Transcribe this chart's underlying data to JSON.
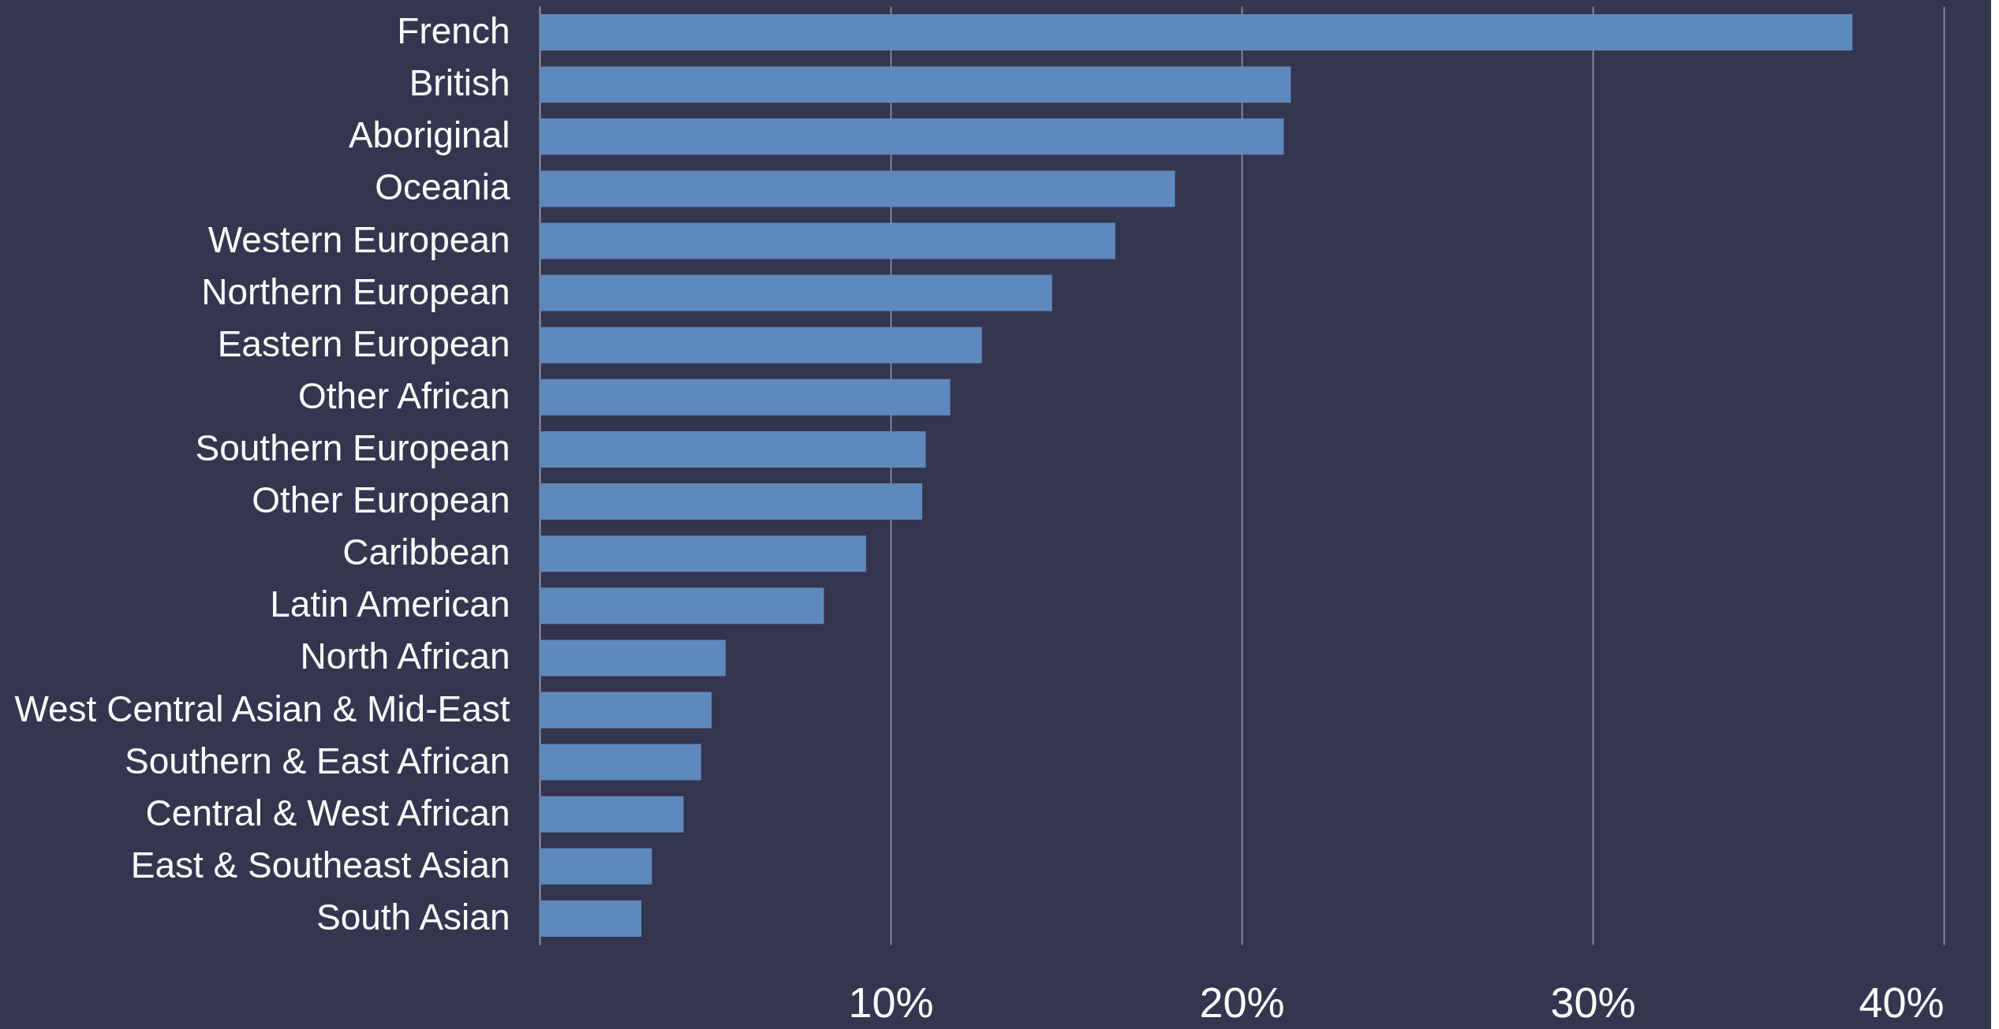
{
  "chart_data": {
    "type": "bar",
    "orientation": "horizontal",
    "categories": [
      "French",
      "British",
      "Aboriginal",
      "Oceania",
      "Western European",
      "Northern European",
      "Eastern European",
      "Other African",
      "Southern European",
      "Other European",
      "Caribbean",
      "Latin American",
      "North African",
      "West Central Asian & Mid-East",
      "Southern & East African",
      "Central & West African",
      "East & Southeast Asian",
      "South Asian"
    ],
    "values": [
      37.4,
      21.4,
      21.2,
      18.1,
      16.4,
      14.6,
      12.6,
      11.7,
      11.0,
      10.9,
      9.3,
      8.1,
      5.3,
      4.9,
      4.6,
      4.1,
      3.2,
      2.9
    ],
    "color": "#5f88bd",
    "xlim": [
      0,
      40
    ],
    "xticks": [
      {
        "value": 0,
        "label": null
      },
      {
        "value": 10,
        "label": "10%"
      },
      {
        "value": 20,
        "label": "20%"
      },
      {
        "value": 30,
        "label": "30%"
      },
      {
        "value": 40,
        "label": "40%"
      }
    ],
    "grid": "x"
  }
}
